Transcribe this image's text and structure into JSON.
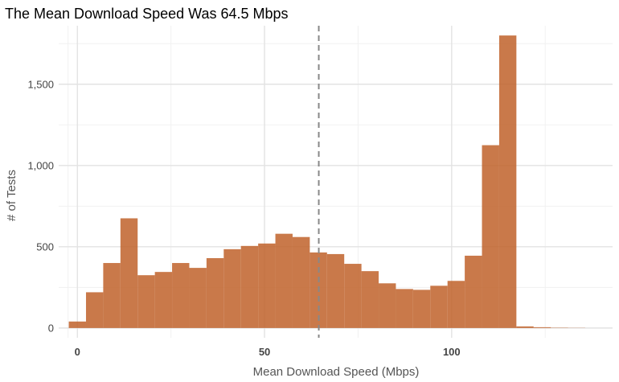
{
  "chart_data": {
    "type": "bar",
    "title": "The Mean Download Speed Was 64.5 Mbps",
    "xlabel": "Mean Download Speed (Mbps)",
    "ylabel": "# of Tests",
    "bin_width": 4.6,
    "bins": [
      {
        "x0": -2.3,
        "count": 40
      },
      {
        "x0": 2.3,
        "count": 220
      },
      {
        "x0": 6.9,
        "count": 400
      },
      {
        "x0": 11.5,
        "count": 675
      },
      {
        "x0": 16.1,
        "count": 325
      },
      {
        "x0": 20.7,
        "count": 345
      },
      {
        "x0": 25.3,
        "count": 400
      },
      {
        "x0": 29.9,
        "count": 370
      },
      {
        "x0": 34.5,
        "count": 430
      },
      {
        "x0": 39.1,
        "count": 485
      },
      {
        "x0": 43.7,
        "count": 505
      },
      {
        "x0": 48.3,
        "count": 520
      },
      {
        "x0": 52.9,
        "count": 580
      },
      {
        "x0": 57.5,
        "count": 560
      },
      {
        "x0": 62.1,
        "count": 465
      },
      {
        "x0": 66.7,
        "count": 455
      },
      {
        "x0": 71.3,
        "count": 395
      },
      {
        "x0": 75.9,
        "count": 350
      },
      {
        "x0": 80.5,
        "count": 275
      },
      {
        "x0": 85.1,
        "count": 240
      },
      {
        "x0": 89.7,
        "count": 235
      },
      {
        "x0": 94.3,
        "count": 260
      },
      {
        "x0": 98.9,
        "count": 290
      },
      {
        "x0": 103.5,
        "count": 445
      },
      {
        "x0": 108.1,
        "count": 1125
      },
      {
        "x0": 112.7,
        "count": 1800
      },
      {
        "x0": 117.3,
        "count": 10
      },
      {
        "x0": 121.9,
        "count": 5
      },
      {
        "x0": 126.5,
        "count": 2
      },
      {
        "x0": 131.1,
        "count": 1
      }
    ],
    "mean_line": 64.5,
    "xlim": [
      -5,
      143
    ],
    "ylim": [
      -60,
      1860
    ],
    "x_ticks": [
      {
        "value": 0,
        "label": "0"
      },
      {
        "value": 50,
        "label": "50"
      },
      {
        "value": 100,
        "label": "100"
      }
    ],
    "y_ticks": [
      {
        "value": 0,
        "label": "0"
      },
      {
        "value": 500,
        "label": "500"
      },
      {
        "value": 1000,
        "label": "1,000"
      },
      {
        "value": 1500,
        "label": "1,500"
      }
    ],
    "grid": true,
    "colors": {
      "bar": "#c0622a",
      "mean_line": "#888888",
      "grid_major": "#e3e3e3",
      "grid_minor": "#f1f1f1"
    }
  }
}
